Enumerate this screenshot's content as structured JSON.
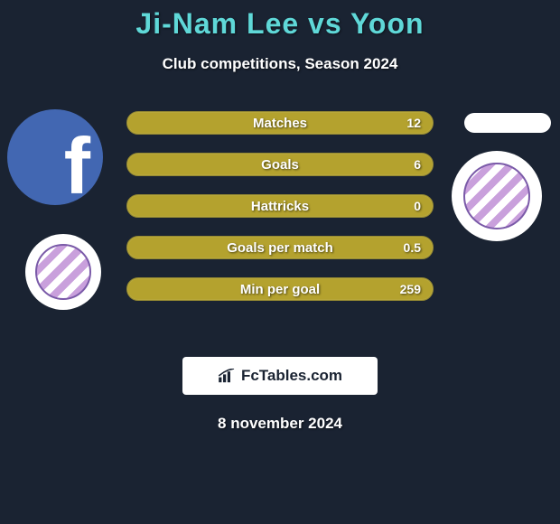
{
  "title": "Ji-Nam Lee vs Yoon",
  "subtitle": "Club competitions, Season 2024",
  "date": "8 november 2024",
  "colors": {
    "background": "#1a2332",
    "title": "#5fd8d8",
    "text": "#ffffff",
    "bar_fill": "#b4a22e",
    "bar_border": "#8f8326",
    "logo_bg": "#ffffff",
    "logo_text": "#1a2332"
  },
  "bars": [
    {
      "label": "Matches",
      "value": "12",
      "fill_pct": 100
    },
    {
      "label": "Goals",
      "value": "6",
      "fill_pct": 100
    },
    {
      "label": "Hattricks",
      "value": "0",
      "fill_pct": 100
    },
    {
      "label": "Goals per match",
      "value": "0.5",
      "fill_pct": 100
    },
    {
      "label": "Min per goal",
      "value": "259",
      "fill_pct": 100
    }
  ],
  "logo": {
    "text": "FcTables.com",
    "icon": "chart-icon"
  },
  "clubs": {
    "left": {
      "name": "chunnam-dragons"
    },
    "right": {
      "name": "chunnam-dragons"
    }
  },
  "avatars": {
    "left": {
      "type": "facebook-placeholder"
    },
    "right": {
      "type": "blank-pill"
    }
  }
}
